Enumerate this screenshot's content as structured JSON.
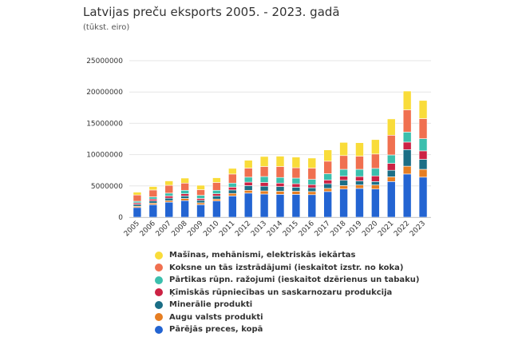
{
  "header": {
    "title": "Latvijas preču eksports 2005. - 2023. gadā",
    "subtitle": "(tūkst. eiro)"
  },
  "chart_data": {
    "type": "bar",
    "stacked": true,
    "title": "Latvijas preču eksports 2005. - 2023. gadā",
    "subtitle": "(tūkst. eiro)",
    "xlabel": "",
    "ylabel": "",
    "ylim": [
      0,
      25000000
    ],
    "yticks": [
      0,
      5000000,
      10000000,
      15000000,
      20000000,
      25000000
    ],
    "ytick_labels": [
      "0",
      "5000000",
      "10000000",
      "15000000",
      "20000000",
      "25000000"
    ],
    "grid": true,
    "legend_position": "bottom",
    "categories": [
      "2005",
      "2006",
      "2007",
      "2008",
      "2009",
      "2010",
      "2011",
      "2012",
      "2013",
      "2014",
      "2015",
      "2016",
      "2017",
      "2018",
      "2019",
      "2020",
      "2021",
      "2022",
      "2023"
    ],
    "series": [
      {
        "name": "Pārējās preces, kopā",
        "color": "#2364d2",
        "values": [
          1550000,
          2000000,
          2400000,
          2650000,
          2000000,
          2600000,
          3400000,
          3850000,
          3700000,
          3650000,
          3650000,
          3600000,
          4100000,
          4500000,
          4600000,
          4500000,
          5700000,
          6900000,
          6400000
        ]
      },
      {
        "name": "Augu valsts produkti",
        "color": "#e67e22",
        "values": [
          200000,
          250000,
          250000,
          350000,
          300000,
          300000,
          400000,
          450000,
          500000,
          500000,
          500000,
          500000,
          500000,
          550000,
          550000,
          650000,
          750000,
          1250000,
          1250000
        ]
      },
      {
        "name": "Minerālie produkti",
        "color": "#1b6e86",
        "values": [
          300000,
          350000,
          400000,
          400000,
          400000,
          500000,
          550000,
          750000,
          750000,
          750000,
          650000,
          600000,
          750000,
          850000,
          650000,
          550000,
          1050000,
          2650000,
          1600000
        ]
      },
      {
        "name": "Ķīmiskās rūpniecības un saskarnozaru produkcija",
        "color": "#cc2244",
        "values": [
          250000,
          300000,
          350000,
          350000,
          300000,
          350000,
          450000,
          550000,
          600000,
          550000,
          550000,
          500000,
          600000,
          650000,
          700000,
          900000,
          1100000,
          1200000,
          1350000
        ]
      },
      {
        "name": "Pārtikas rūpn. ražojumi (ieskaitot dzērienus un tabaku)",
        "color": "#3bbfad",
        "values": [
          250000,
          350000,
          450000,
          550000,
          500000,
          550000,
          650000,
          800000,
          950000,
          900000,
          900000,
          850000,
          1000000,
          1100000,
          1150000,
          1200000,
          1350000,
          1600000,
          1950000
        ]
      },
      {
        "name": "Koksne un tās izstrādājumi (ieskaitot izstr. no koka)",
        "color": "#f07050",
        "values": [
          1000000,
          1100000,
          1250000,
          1150000,
          900000,
          1250000,
          1450000,
          1450000,
          1600000,
          1750000,
          1650000,
          1800000,
          2000000,
          2200000,
          2100000,
          2300000,
          3150000,
          3550000,
          3200000
        ]
      },
      {
        "name": "Mašīnas, mehānismi, elektriskās iekārtas",
        "color": "#f9dc3a",
        "values": [
          450000,
          550000,
          700000,
          800000,
          700000,
          750000,
          900000,
          1250000,
          1600000,
          1650000,
          1700000,
          1600000,
          1800000,
          2100000,
          2150000,
          2300000,
          2600000,
          3000000,
          2900000
        ]
      }
    ]
  }
}
